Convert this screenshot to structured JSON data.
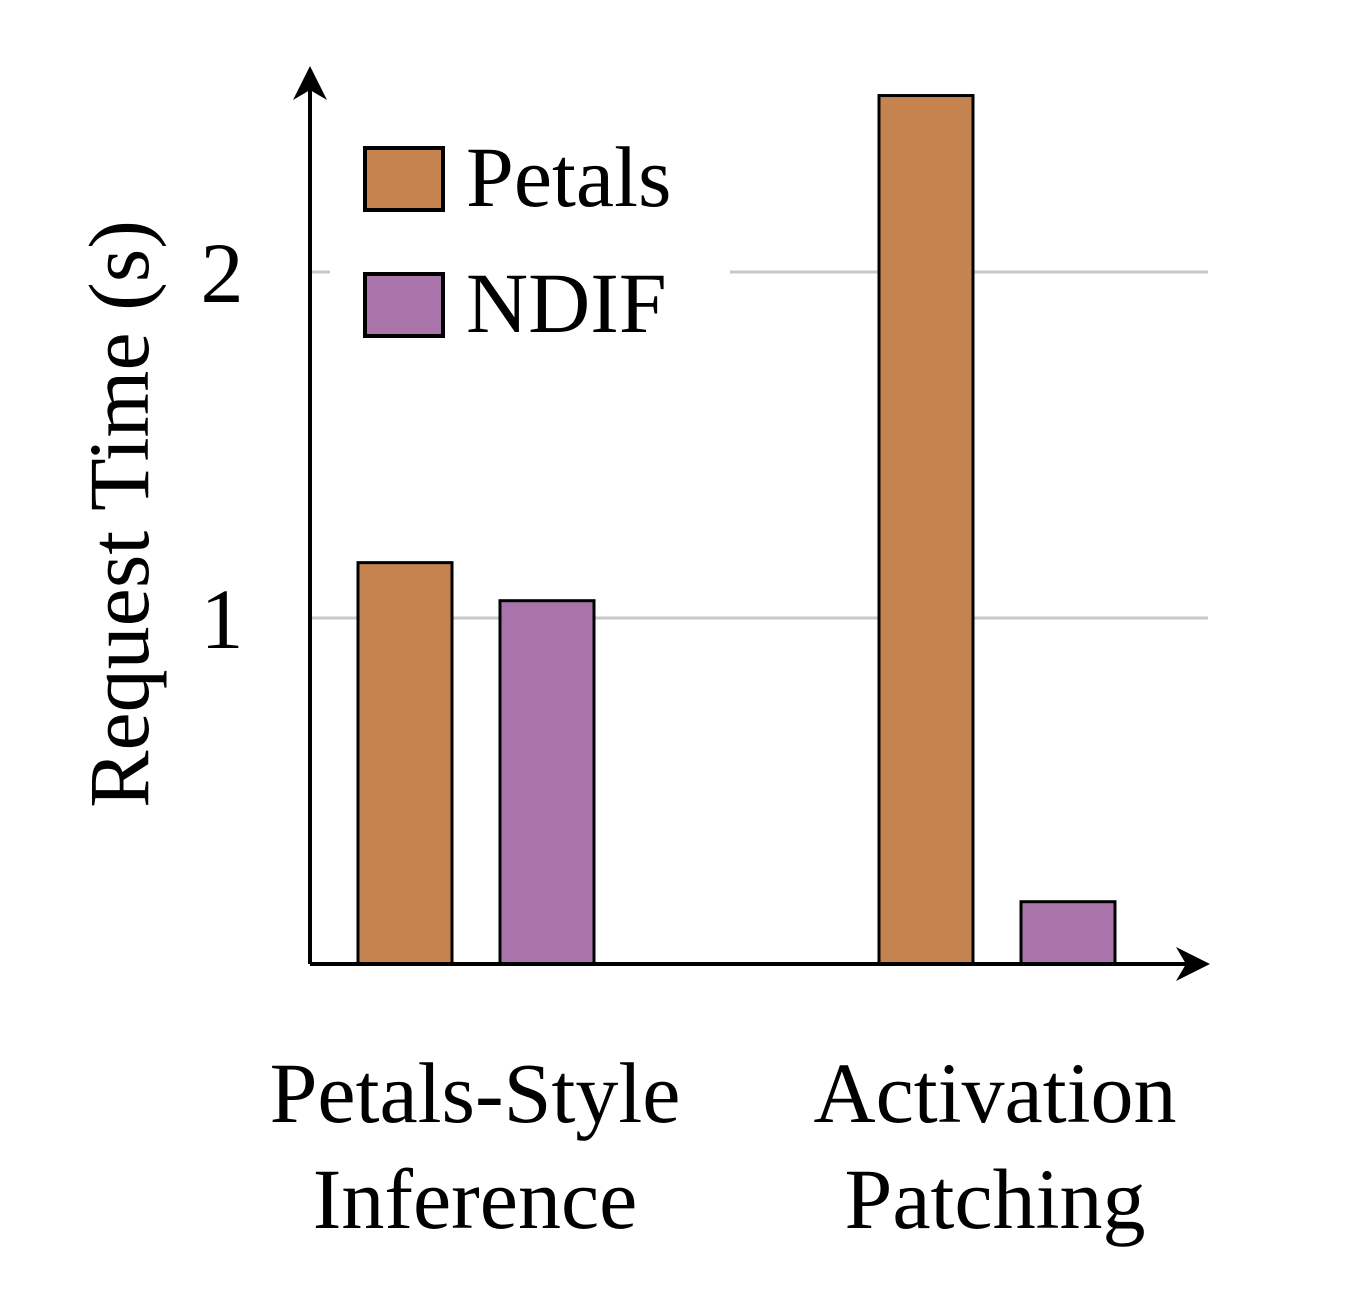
{
  "chart_data": {
    "type": "bar",
    "title": "",
    "xlabel": "",
    "ylabel": "Request Time (s)",
    "categories": [
      [
        "Petals-Style",
        "Inference"
      ],
      [
        "Activation",
        "Patching"
      ]
    ],
    "series": [
      {
        "name": "Petals",
        "color": "#c4834f",
        "values": [
          1.16,
          2.51
        ]
      },
      {
        "name": "NDIF",
        "color": "#a974aa",
        "values": [
          1.05,
          0.18
        ]
      }
    ],
    "yticks": [
      1,
      2
    ],
    "ylim": [
      0,
      2.75
    ],
    "grid": "horizontal",
    "legend_position": "top-left"
  }
}
